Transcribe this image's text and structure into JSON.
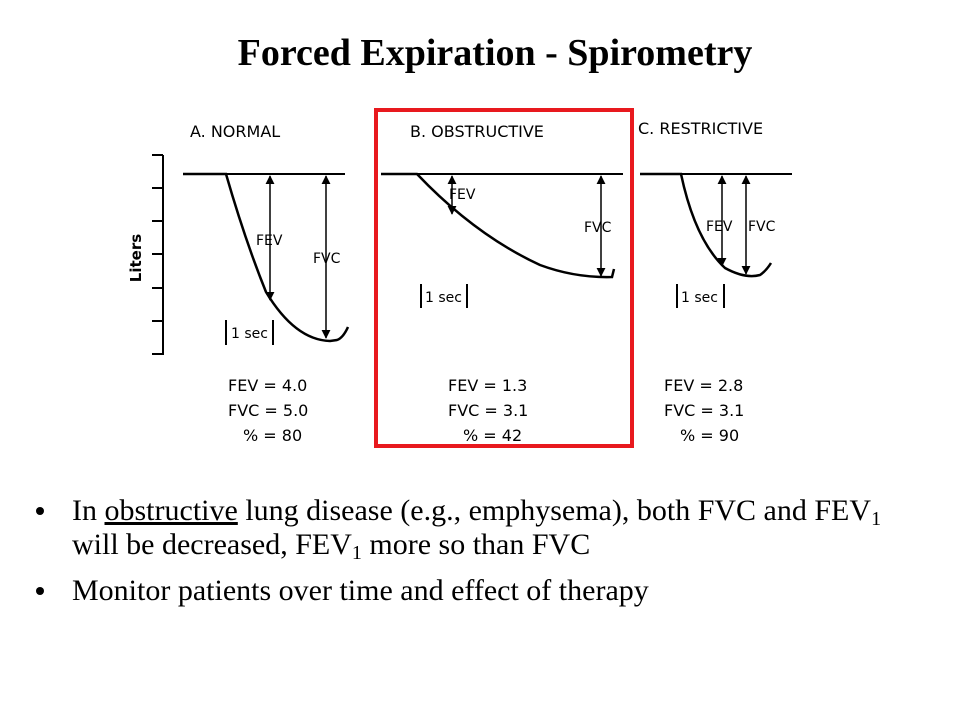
{
  "title": "Forced Expiration - Spirometry",
  "y_axis_label": "Liters",
  "panels": [
    {
      "heading": "A. NORMAL",
      "fev_marker": "FEV",
      "fvc_marker": "FVC",
      "time_marker": "1 sec",
      "fev_line": "FEV = 4.0",
      "fvc_line": "FVC = 5.0",
      "pct_line": "% = 80",
      "fev": 4.0,
      "fvc": 5.0,
      "percent": 80
    },
    {
      "heading": "B. OBSTRUCTIVE",
      "fev_marker": "FEV",
      "fvc_marker": "FVC",
      "time_marker": "1 sec",
      "fev_line": "FEV = 1.3",
      "fvc_line": "FVC = 3.1",
      "pct_line": "% = 42",
      "fev": 1.3,
      "fvc": 3.1,
      "percent": 42,
      "highlighted": true,
      "highlight_color": "#e8191e"
    },
    {
      "heading": "C. RESTRICTIVE",
      "fev_marker": "FEV",
      "fvc_marker": "FVC",
      "time_marker": "1 sec",
      "fev_line": "FEV = 2.8",
      "fvc_line": "FVC = 3.1",
      "pct_line": "% = 90",
      "fev": 2.8,
      "fvc": 3.1,
      "percent": 90
    }
  ],
  "bullets": {
    "b1": {
      "p1": "In ",
      "u": "obstructive",
      "p2": " lung disease (e.g., emphysema), both FVC and FEV",
      "s1": "1",
      "p3": " will be decreased, FEV",
      "s2": "1",
      "p4": " more so than FVC"
    },
    "b2": "Monitor patients over time and effect of therapy"
  }
}
